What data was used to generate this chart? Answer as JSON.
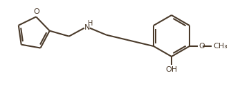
{
  "bg_color": "#ffffff",
  "line_color": "#4a3a2a",
  "line_width": 1.5,
  "fig_width": 3.47,
  "fig_height": 1.32,
  "dpi": 100,
  "NH_label": "H",
  "N_label": "N",
  "OH_label": "OH",
  "O_furan_label": "O",
  "O_methoxy_label": "O"
}
